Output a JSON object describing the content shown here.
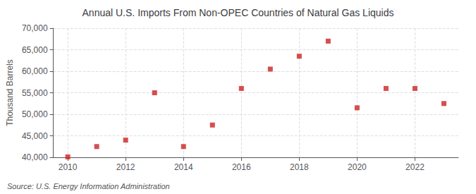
{
  "chart_data": {
    "type": "scatter",
    "title": "Annual U.S. Imports From Non-OPEC Countries of Natural Gas Liquids",
    "ylabel": "Thousand Barrels",
    "annotation": "Source: U.S. Energy Information Administration",
    "x": [
      2010,
      2011,
      2012,
      2013,
      2014,
      2015,
      2016,
      2017,
      2018,
      2019,
      2020,
      2021,
      2022,
      2023
    ],
    "values": [
      40100,
      42500,
      44000,
      55000,
      42500,
      47500,
      56000,
      60500,
      63500,
      67000,
      51500,
      56000,
      56000,
      52500
    ],
    "color": "#cc2222",
    "marker": "square",
    "xlim": [
      2009.5,
      2023.5
    ],
    "xticks": [
      2010,
      2012,
      2014,
      2016,
      2018,
      2020,
      2022
    ],
    "ylim": [
      40000,
      70000
    ],
    "yticks": [
      {
        "value": 40000,
        "label": "40,000"
      },
      {
        "value": 45000,
        "label": "45,000"
      },
      {
        "value": 50000,
        "label": "50,000"
      },
      {
        "value": 55000,
        "label": "55,000"
      },
      {
        "value": 60000,
        "label": "60,000"
      },
      {
        "value": 65000,
        "label": "65,000"
      },
      {
        "value": 70000,
        "label": "70,000"
      }
    ],
    "grid": true
  }
}
